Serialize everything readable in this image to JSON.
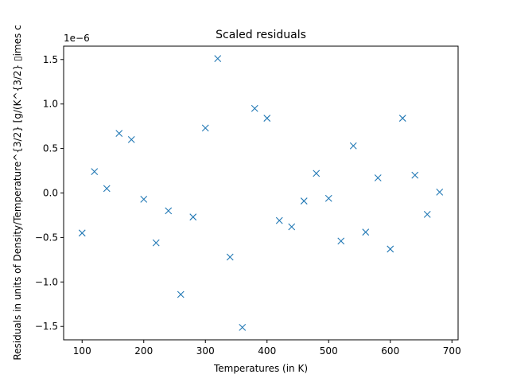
{
  "chart_data": {
    "type": "scatter",
    "title": "Scaled residuals",
    "xlabel": "Temperatures (in K)",
    "ylabel": "Residuals in units of Density/Temperature^{3/2} [g/(K^{3/2} ▯іmes c",
    "offset_text": "1e−6",
    "xlim": [
      70,
      710
    ],
    "ylim": [
      -1.65,
      1.65
    ],
    "x_ticks": [
      100,
      200,
      300,
      400,
      500,
      600,
      700
    ],
    "x_tick_labels": [
      "100",
      "200",
      "300",
      "400",
      "500",
      "600",
      "700"
    ],
    "y_ticks": [
      -1.5,
      -1.0,
      -0.5,
      0.0,
      0.5,
      1.0,
      1.5
    ],
    "y_tick_labels": [
      "−1.5",
      "−1.0",
      "−0.5",
      "0.0",
      "0.5",
      "1.0",
      "1.5"
    ],
    "marker": "x",
    "grid": false,
    "color": "#1f77b4",
    "series": [
      {
        "x": [
          100,
          120,
          140,
          160,
          180,
          200,
          220,
          240,
          260,
          280,
          300,
          320,
          340,
          360,
          380,
          400,
          420,
          440,
          460,
          480,
          500,
          520,
          540,
          560,
          580,
          600,
          620,
          640,
          660,
          680
        ],
        "y": [
          -0.45,
          0.24,
          0.05,
          0.67,
          0.6,
          -0.07,
          -0.56,
          -0.2,
          -1.14,
          -0.27,
          0.73,
          1.51,
          -0.72,
          -1.51,
          0.95,
          0.84,
          -0.31,
          -0.38,
          -0.09,
          0.22,
          -0.06,
          -0.54,
          0.53,
          -0.44,
          0.17,
          -0.63,
          0.84,
          0.2,
          -0.24,
          0.01
        ]
      }
    ]
  }
}
